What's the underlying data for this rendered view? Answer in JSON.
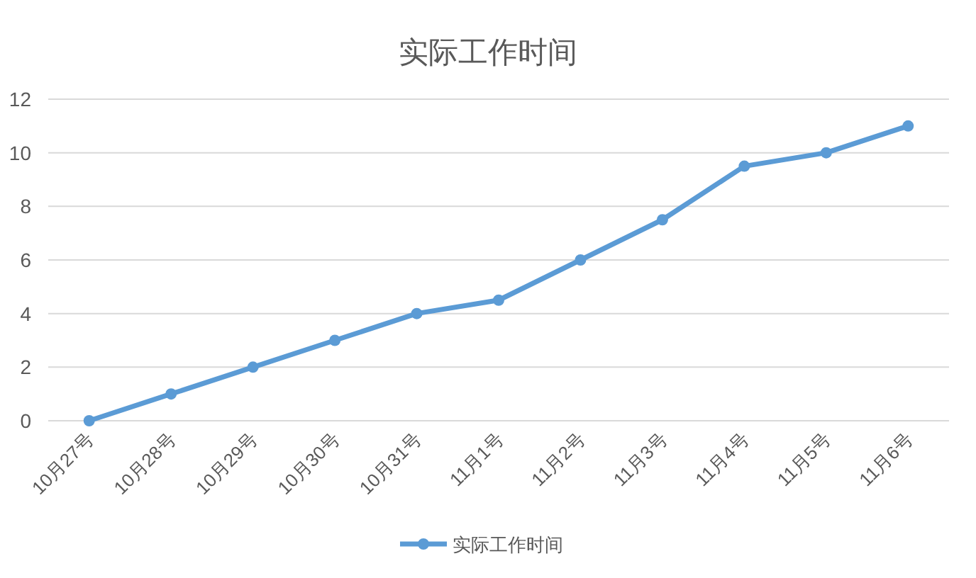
{
  "chart_data": {
    "type": "line",
    "title": "实际工作时间",
    "categories": [
      "10月27号",
      "10月28号",
      "10月29号",
      "10月30号",
      "10月31号",
      "11月1号",
      "11月2号",
      "11月3号",
      "11月4号",
      "11月5号",
      "11月6号"
    ],
    "series": [
      {
        "name": "实际工作时间",
        "color": "#5b9bd5",
        "values": [
          0,
          1,
          2,
          3,
          4,
          4.5,
          6,
          7.5,
          9.5,
          10,
          11
        ]
      }
    ],
    "ylim": [
      0,
      12
    ],
    "yticks": [
      0,
      2,
      4,
      6,
      8,
      10,
      12
    ],
    "grid": "y",
    "legend": "bottom",
    "marker": "circle",
    "line_style": "solid"
  }
}
